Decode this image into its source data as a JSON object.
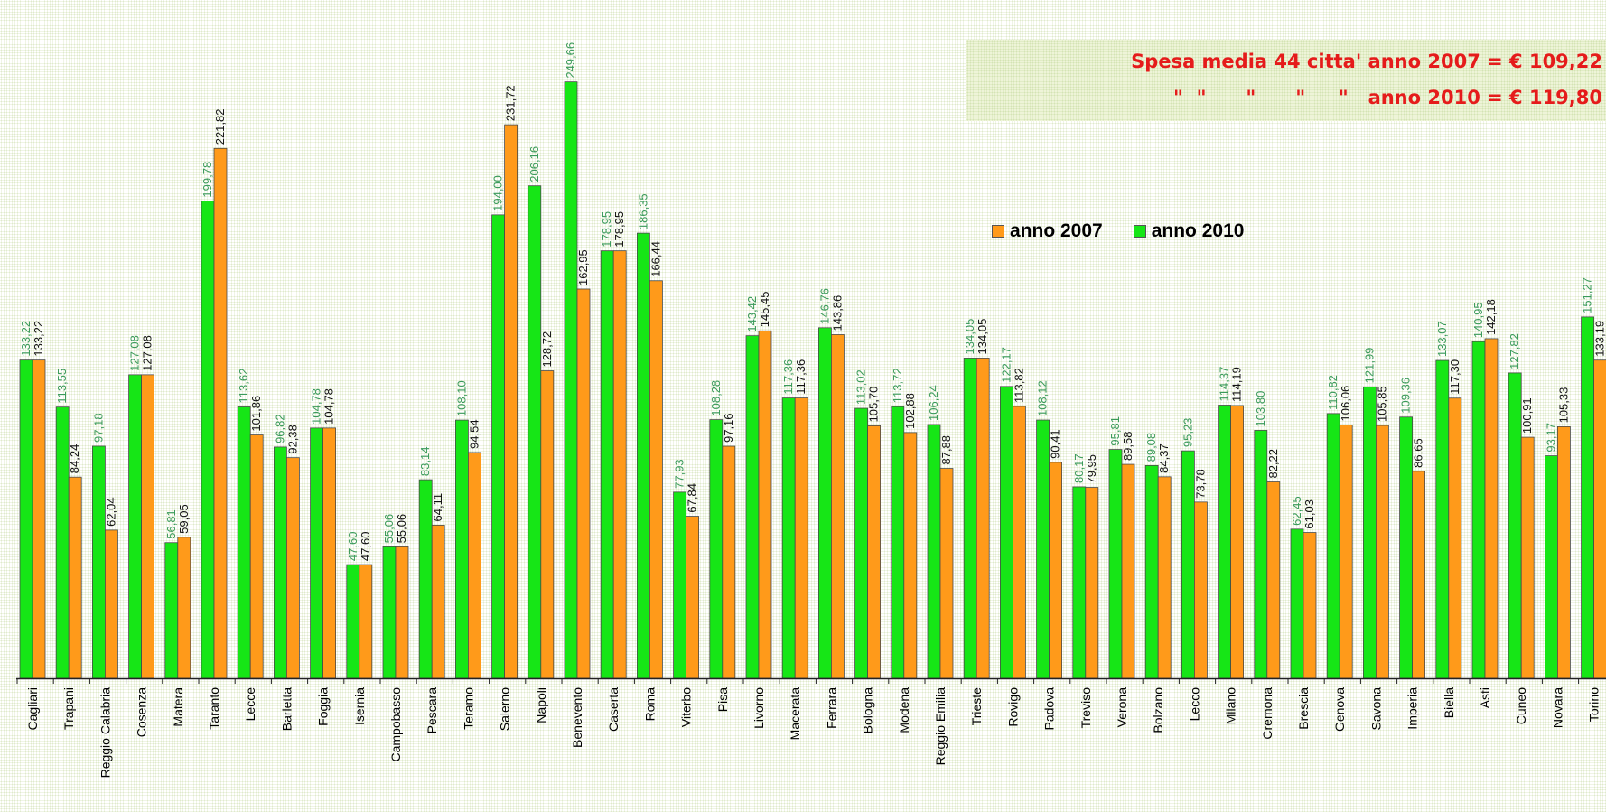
{
  "notes": {
    "line1": "Spesa media 44 citta' anno 2007 = € 109,22",
    "line2": "\"  \"      \"      \"     \"   anno 2010 = € 119,80"
  },
  "colors": {
    "series_2010": "#16e616",
    "series_2007": "#ff9a1a",
    "label_2010": "#3a9a5a",
    "label_2007": "#111111",
    "note_text": "#e51b1b"
  },
  "chart_data": {
    "type": "bar",
    "title": "",
    "xlabel": "",
    "ylabel": "",
    "legend_position": "top-right",
    "grid": false,
    "categories": [
      "Cagliari",
      "Trapani",
      "Reggio Calabria",
      "Cosenza",
      "Matera",
      "Taranto",
      "Lecce",
      "Barletta",
      "Foggia",
      "Isernia",
      "Campobasso",
      "Pescara",
      "Teramo",
      "Salerno",
      "Napoli",
      "Benevento",
      "Caserta",
      "Roma",
      "Viterbo",
      "Pisa",
      "Livorno",
      "Macerata",
      "Ferrara",
      "Bologna",
      "Modena",
      "Reggio Emilia",
      "Trieste",
      "Rovigo",
      "Padova",
      "Treviso",
      "Verona",
      "Bolzano",
      "Lecco",
      "Milano",
      "Cremona",
      "Brescia",
      "Genova",
      "Savona",
      "Imperia",
      "Biella",
      "Asti",
      "Cuneo",
      "Novara",
      "Torino"
    ],
    "series": [
      {
        "name": "anno 2010",
        "values": [
          133.22,
          113.55,
          97.18,
          127.08,
          56.81,
          199.78,
          113.62,
          96.82,
          104.78,
          47.6,
          55.06,
          83.14,
          108.1,
          194.0,
          206.16,
          249.66,
          178.95,
          186.35,
          77.93,
          108.28,
          143.42,
          117.36,
          146.76,
          113.02,
          113.72,
          106.24,
          134.05,
          122.17,
          108.12,
          80.17,
          95.81,
          89.08,
          95.23,
          114.37,
          103.8,
          62.45,
          110.82,
          121.99,
          109.36,
          133.07,
          140.95,
          127.82,
          93.17,
          151.27
        ],
        "labels": [
          "133,22",
          "113,55",
          "97,18",
          "127,08",
          "56,81",
          "199,78",
          "113,62",
          "96,82",
          "104,78",
          "47,60",
          "55,06",
          "83,14",
          "108,10",
          "194,00",
          "206,16",
          "249,66",
          "178,95",
          "186,35",
          "77,93",
          "108,28",
          "143,42",
          "117,36",
          "146,76",
          "113,02",
          "113,72",
          "106,24",
          "134,05",
          "122,17",
          "108,12",
          "80,17",
          "95,81",
          "89,08",
          "95,23",
          "114,37",
          "103,80",
          "62,45",
          "110,82",
          "121,99",
          "109,36",
          "133,07",
          "140,95",
          "127,82",
          "93,17",
          "151,27"
        ]
      },
      {
        "name": "anno 2007",
        "values": [
          133.22,
          84.24,
          62.04,
          127.08,
          59.05,
          221.82,
          101.86,
          92.38,
          104.78,
          47.6,
          55.06,
          64.11,
          94.54,
          231.72,
          128.72,
          162.95,
          178.95,
          166.44,
          67.84,
          97.16,
          145.45,
          117.36,
          143.86,
          105.7,
          102.88,
          87.88,
          134.05,
          113.82,
          90.41,
          79.95,
          89.58,
          84.37,
          73.78,
          114.19,
          82.22,
          61.03,
          106.06,
          105.85,
          86.65,
          117.3,
          142.18,
          100.91,
          105.33,
          133.19
        ],
        "labels": [
          "133,22",
          "84,24",
          "62,04",
          "127,08",
          "59,05",
          "221,82",
          "101,86",
          "92,38",
          "104,78",
          "47,60",
          "55,06",
          "64,11",
          "94,54",
          "231,72",
          "128,72",
          "162,95",
          "178,95",
          "166,44",
          "67,84",
          "97,16",
          "145,45",
          "117,36",
          "143,86",
          "105,70",
          "102,88",
          "87,88",
          "134,05",
          "113,82",
          "90,41",
          "79,95",
          "89,58",
          "84,37",
          "73,78",
          "114,19",
          "82,22",
          "61,03",
          "106,06",
          "105,85",
          "86,65",
          "117,30",
          "142,18",
          "100,91",
          "105,33",
          "133,19"
        ]
      }
    ]
  }
}
